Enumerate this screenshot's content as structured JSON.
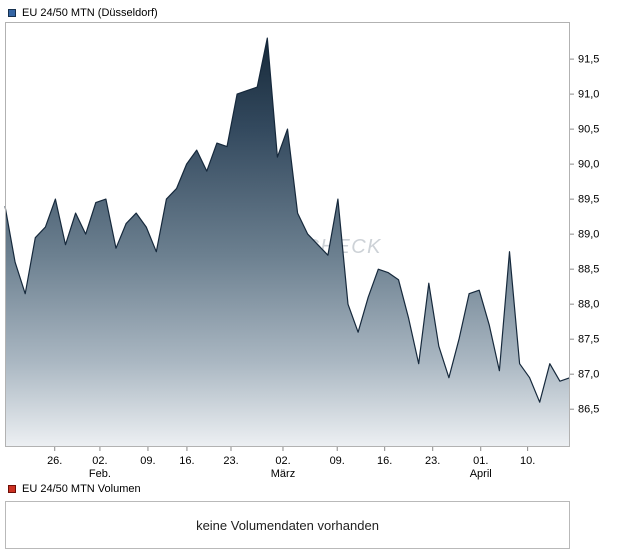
{
  "price_chart": {
    "title": "EU 24/50 MTN (Düsseldorf)",
    "swatch_fill": "#3465a4",
    "swatch_border": "#17314f"
  },
  "volume_section": {
    "title": "EU 24/50 MTN Volumen",
    "swatch_fill": "#cc3122",
    "swatch_border": "#6e0f08",
    "message": "keine Volumendaten vorhanden"
  },
  "watermark": "AKTIENCHECK",
  "chart_data": {
    "type": "area",
    "title": "EU 24/50 MTN (Düsseldorf)",
    "series_name": "EU 24/50 MTN",
    "decimal_separator": ",",
    "grid": false,
    "legend_position": "top-left",
    "values": [
      89.4,
      88.6,
      88.15,
      88.95,
      89.1,
      89.5,
      88.85,
      89.3,
      89.0,
      89.45,
      89.5,
      88.8,
      89.15,
      89.3,
      89.1,
      88.75,
      89.5,
      89.65,
      90.0,
      90.2,
      89.9,
      90.3,
      90.25,
      91.0,
      91.05,
      91.1,
      91.8,
      90.1,
      90.5,
      89.3,
      89.0,
      88.85,
      88.7,
      89.5,
      88.0,
      87.6,
      88.1,
      88.5,
      88.45,
      88.35,
      87.8,
      87.15,
      88.3,
      87.4,
      86.95,
      87.5,
      88.15,
      88.2,
      87.7,
      87.05,
      88.75,
      87.15,
      86.95,
      86.6,
      87.15,
      86.9,
      86.95
    ],
    "x_ticks": [
      {
        "label": "26.",
        "pos": 0.088
      },
      {
        "label": "02.",
        "pos": 0.168
      },
      {
        "label": "09.",
        "pos": 0.253
      },
      {
        "label": "16.",
        "pos": 0.322
      },
      {
        "label": "23.",
        "pos": 0.4
      },
      {
        "label": "02.",
        "pos": 0.492
      },
      {
        "label": "09.",
        "pos": 0.588
      },
      {
        "label": "16.",
        "pos": 0.672
      },
      {
        "label": "23.",
        "pos": 0.757
      },
      {
        "label": "01.",
        "pos": 0.842
      },
      {
        "label": "10.",
        "pos": 0.925
      }
    ],
    "month_labels": [
      {
        "label": "Feb.",
        "pos": 0.168
      },
      {
        "label": "März",
        "pos": 0.492
      },
      {
        "label": "April",
        "pos": 0.842
      }
    ],
    "y_ticks": [
      91.5,
      91.0,
      90.5,
      90.0,
      89.5,
      89.0,
      88.5,
      88.0,
      87.5,
      87.0,
      86.5
    ],
    "ylim": [
      85.96,
      92.03
    ],
    "colors": {
      "line": "#16293c",
      "axis_border": "#b2b2b2",
      "tick": "#8a8a8a",
      "label": "#000000",
      "watermark": "#cdd2d7",
      "fill_stops": [
        [
          "0%",
          "#122433"
        ],
        [
          "25%",
          "#33495e"
        ],
        [
          "55%",
          "#6c8090"
        ],
        [
          "80%",
          "#aab7c2"
        ],
        [
          "100%",
          "#edf0f3"
        ]
      ]
    }
  }
}
